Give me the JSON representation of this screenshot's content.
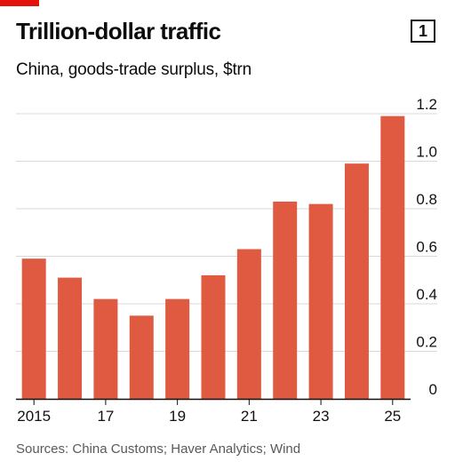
{
  "header": {
    "title": "Trillion-dollar traffic",
    "badge": "1",
    "subtitle": "China, goods-trade surplus, $trn"
  },
  "source": "Sources: China Customs; Haver Analytics; Wind",
  "colors": {
    "bar": "#e05a42",
    "accent": "#e3120b",
    "grid": "#d9d9d9",
    "axis": "#111111"
  },
  "chart_data": {
    "type": "bar",
    "title": "Trillion-dollar traffic",
    "subtitle": "China, goods-trade surplus, $trn",
    "categories": [
      "2015",
      "2016",
      "2017",
      "2018",
      "2019",
      "2020",
      "2021",
      "2022",
      "2023",
      "2024",
      "2025"
    ],
    "x_tick_labels": [
      {
        "category": "2015",
        "label": "2015"
      },
      {
        "category": "2017",
        "label": "17"
      },
      {
        "category": "2019",
        "label": "19"
      },
      {
        "category": "2021",
        "label": "21"
      },
      {
        "category": "2023",
        "label": "23"
      },
      {
        "category": "2025",
        "label": "25"
      }
    ],
    "values": [
      0.59,
      0.51,
      0.42,
      0.35,
      0.42,
      0.52,
      0.63,
      0.83,
      0.82,
      0.99,
      1.19
    ],
    "ylim": [
      0,
      1.2
    ],
    "y_ticks": [
      "0",
      "0.2",
      "0.4",
      "0.6",
      "0.8",
      "1.0",
      "1.2"
    ],
    "y_tick_values": [
      0,
      0.2,
      0.4,
      0.6,
      0.8,
      1.0,
      1.2
    ],
    "y_axis_side": "right",
    "grid": true
  }
}
